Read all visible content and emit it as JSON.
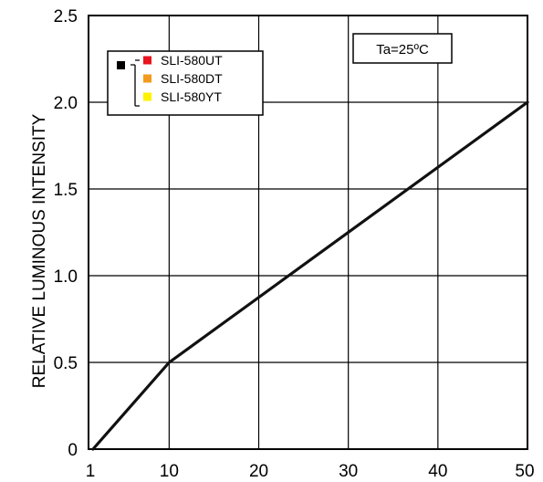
{
  "chart_data": {
    "type": "line",
    "title": "",
    "xlabel": "",
    "ylabel": "RELATIVE LUMINOUS INTENSITY",
    "xlim": [
      1,
      50
    ],
    "ylim": [
      0,
      2.5
    ],
    "x_ticks": [
      1,
      10,
      20,
      30,
      40,
      50
    ],
    "x_tick_labels": [
      "1",
      "10",
      "20",
      "30",
      "40",
      "50"
    ],
    "y_ticks": [
      0,
      0.5,
      1.0,
      1.5,
      2.0,
      2.5
    ],
    "y_tick_labels": [
      "0",
      "0.5",
      "1.0",
      "1.5",
      "2.0",
      "2.5"
    ],
    "grid": true,
    "annotation": "Ta=25ºC",
    "legend": {
      "placement": "top-left",
      "marker_color": "#000000",
      "entries": [
        {
          "label": "SLI-580UT",
          "color": "#e8141e"
        },
        {
          "label": "SLI-580DT",
          "color": "#f39a1e"
        },
        {
          "label": "SLI-580YT",
          "color": "#fff200"
        }
      ]
    },
    "series": [
      {
        "color": "#111111",
        "x": [
          1.5,
          10,
          50
        ],
        "y": [
          0.0,
          0.5,
          2.0
        ]
      }
    ]
  }
}
